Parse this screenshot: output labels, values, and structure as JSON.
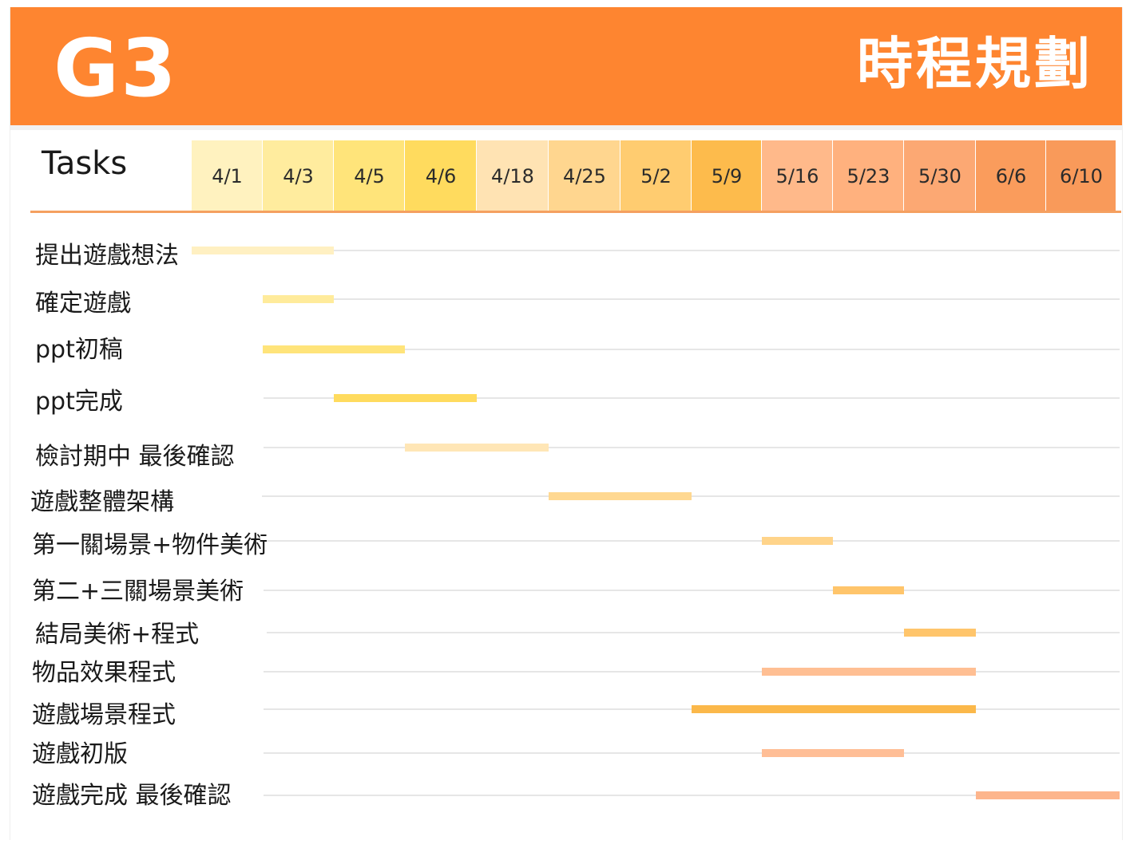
{
  "header": {
    "group_name": "G3",
    "title": "時程規劃",
    "background_color": "#fe8530"
  },
  "chart_data": {
    "type": "gantt",
    "tasks_header": "Tasks",
    "dates": [
      "4/1",
      "4/3",
      "4/5",
      "4/6",
      "4/18",
      "4/25",
      "5/2",
      "5/9",
      "5/16",
      "5/23",
      "5/30",
      "6/6",
      "6/10"
    ],
    "date_colors": [
      "#fff2bf",
      "#ffec9e",
      "#ffe47a",
      "#ffdb5e",
      "#ffe3b3",
      "#ffd68f",
      "#ffcc70",
      "#fdbb4c",
      "#ffb98a",
      "#ffb17e",
      "#fca873",
      "#fa9c5c",
      "#f99a5a"
    ],
    "axis_line_color": "#f5a060",
    "tasks": [
      {
        "name": "提出遊戲想法",
        "start": "4/1",
        "end": "4/5",
        "color": "#fff0c2"
      },
      {
        "name": "確定遊戲",
        "start": "4/3",
        "end": "4/5",
        "color": "#ffeb9b"
      },
      {
        "name": "ppt初稿",
        "start": "4/3",
        "end": "4/6",
        "color": "#ffe47a"
      },
      {
        "name": "ppt完成",
        "start": "4/5",
        "end": "4/18",
        "color": "#ffdb5e"
      },
      {
        "name": "檢討期中 最後確認",
        "start": "4/6",
        "end": "4/25",
        "color": "#ffe6b6"
      },
      {
        "name": "遊戲整體架構",
        "start": "4/25",
        "end": "5/9",
        "color": "#ffd891"
      },
      {
        "name": "第一關場景+物件美術",
        "start": "5/16",
        "end": "5/23",
        "color": "#ffd48a"
      },
      {
        "name": "第二+三關場景美術",
        "start": "5/23",
        "end": "5/30",
        "color": "#ffc56b"
      },
      {
        "name": "結局美術+程式",
        "start": "5/30",
        "end": "6/6",
        "color": "#ffc56b"
      },
      {
        "name": "物品效果程式",
        "start": "5/16",
        "end": "6/6",
        "color": "#ffbf93"
      },
      {
        "name": "遊戲場景程式",
        "start": "5/9",
        "end": "6/6",
        "color": "#fbb84a"
      },
      {
        "name": "遊戲初版",
        "start": "5/16",
        "end": "5/30",
        "color": "#ffbe96"
      },
      {
        "name": "遊戲完成  最後確認",
        "start": "6/6",
        "end": "6/10",
        "color": "#fdb58c"
      }
    ]
  }
}
